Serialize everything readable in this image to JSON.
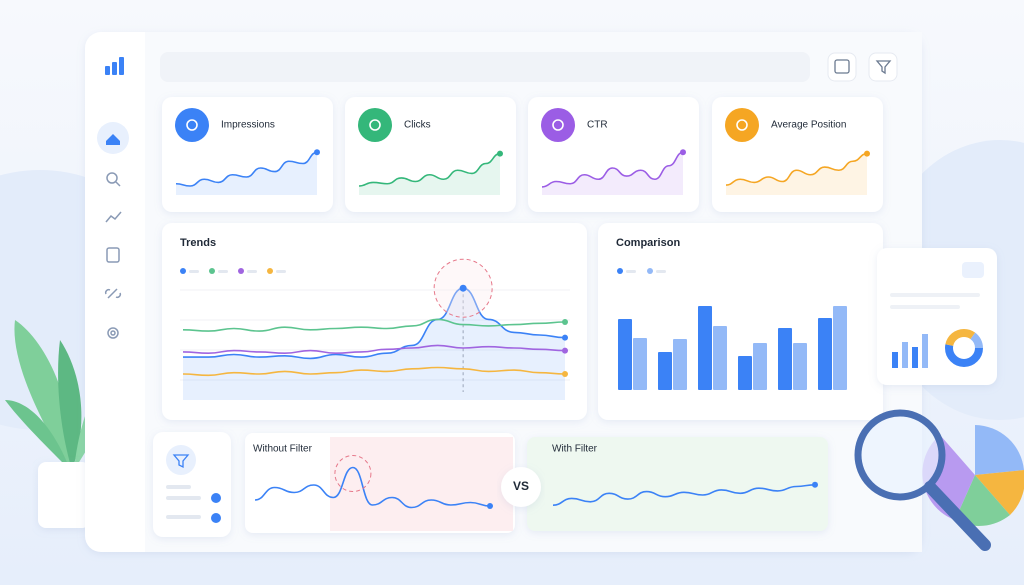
{
  "cards": [
    {
      "label": "Impressions",
      "color": "#3b82f6",
      "values": [
        25,
        20,
        35,
        28,
        45,
        40,
        60,
        52,
        75,
        70,
        95
      ]
    },
    {
      "label": "Clicks",
      "color": "#34b77a",
      "values": [
        20,
        28,
        25,
        38,
        30,
        45,
        35,
        55,
        48,
        70,
        92
      ]
    },
    {
      "label": "CTR",
      "color": "#9b5de5",
      "values": [
        18,
        30,
        25,
        45,
        35,
        60,
        42,
        55,
        35,
        65,
        95
      ]
    },
    {
      "label": "Average Position",
      "color": "#f5a623",
      "values": [
        22,
        35,
        28,
        40,
        30,
        55,
        45,
        62,
        55,
        75,
        92
      ]
    }
  ],
  "trends": {
    "title": "Trends",
    "highlight": 11,
    "series": [
      {
        "color": "#3b82f6",
        "values": [
          33,
          33,
          35,
          33,
          34,
          32,
          35,
          33,
          36,
          42,
          62,
          86,
          62,
          52,
          50,
          48
        ]
      },
      {
        "color": "#5cc48f",
        "values": [
          54,
          53,
          55,
          53,
          56,
          54,
          55,
          56,
          55,
          57,
          62,
          58,
          57,
          58,
          59,
          60
        ]
      },
      {
        "color": "#a065e0",
        "values": [
          37,
          36,
          38,
          37,
          36,
          38,
          36,
          37,
          39,
          40,
          42,
          40,
          41,
          40,
          39,
          38
        ]
      },
      {
        "color": "#f5b640",
        "values": [
          20,
          19,
          21,
          20,
          22,
          20,
          21,
          23,
          22,
          24,
          25,
          24,
          22,
          23,
          21,
          20
        ]
      }
    ]
  },
  "comparison": {
    "title": "Comparison",
    "series": [
      {
        "color": "#3b82f6",
        "values": [
          71,
          38,
          84,
          34,
          62,
          72
        ]
      },
      {
        "color": "#93b9f7",
        "values": [
          52,
          51,
          64,
          47,
          47,
          84
        ]
      }
    ]
  },
  "without_filter": {
    "title": "Without Filter",
    "color": "#3b82f6",
    "values": [
      30,
      55,
      45,
      60,
      35,
      95,
      20,
      35,
      15,
      30,
      20,
      25,
      18
    ]
  },
  "with_filter": {
    "title": "With Filter",
    "color": "#3b82f6",
    "values": [
      20,
      40,
      30,
      55,
      38,
      60,
      45,
      58,
      50,
      65,
      55,
      70,
      62,
      75,
      80
    ]
  },
  "vs": "VS"
}
